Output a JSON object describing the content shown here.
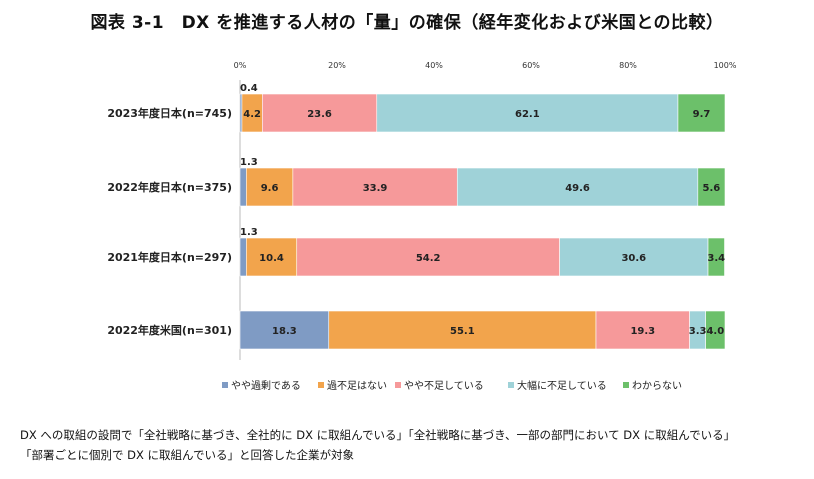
{
  "title": "図表 3-1　DX を推進する人材の「量」の確保（経年変化および米国との比較）",
  "notes": [
    "DX への取組の設問で「全社戦略に基づき、全社的に DX に取組んでいる」「全社戦略に基づき、一部の部門において DX に取組んでいる」",
    "「部署ごとに個別で DX に取組んでいる」と回答した企業が対象"
  ],
  "chart_data": {
    "type": "bar",
    "orientation": "horizontal",
    "stacked": "percent",
    "categories": [
      "2023年度日本(n=745)",
      "2022年度日本(n=375)",
      "2021年度日本(n=297)",
      "2022年度米国(n=301)"
    ],
    "x_ticks": [
      "0%",
      "20%",
      "40%",
      "60%",
      "80%",
      "100%"
    ],
    "xlim": [
      0,
      100
    ],
    "grid": false,
    "legend_position": "bottom",
    "series": [
      {
        "name": "やや過剰である",
        "color": "#7f9bc4",
        "values": [
          0.4,
          1.3,
          1.3,
          18.3
        ]
      },
      {
        "name": "過不足はない",
        "color": "#f2a44c",
        "values": [
          4.2,
          9.6,
          10.4,
          55.1
        ]
      },
      {
        "name": "やや不足している",
        "color": "#f6999a",
        "values": [
          23.6,
          33.9,
          54.2,
          19.3
        ]
      },
      {
        "name": "大幅に不足している",
        "color": "#9fd2d8",
        "values": [
          62.1,
          49.6,
          30.6,
          3.3
        ]
      },
      {
        "name": "わからない",
        "color": "#6cc06a",
        "values": [
          9.7,
          5.6,
          3.4,
          4.0
        ]
      }
    ]
  }
}
